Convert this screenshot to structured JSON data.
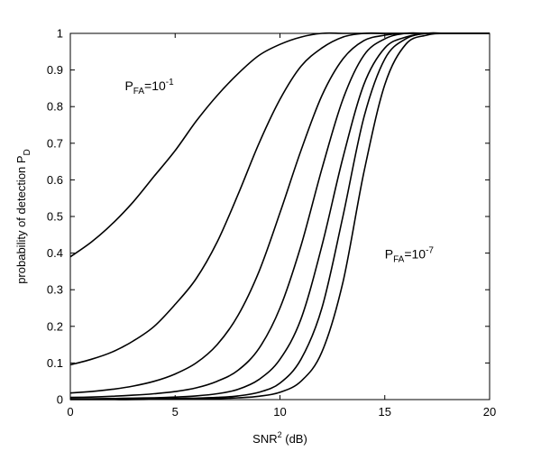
{
  "chart_data": {
    "type": "line",
    "xlabel": {
      "base": "SNR",
      "sup": "2",
      "tail": " (dB)"
    },
    "ylabel": {
      "base": "probability of detection P",
      "sub": "D"
    },
    "xlim": [
      0,
      20
    ],
    "ylim": [
      0,
      1
    ],
    "xticks": [
      "0",
      "5",
      "10",
      "15",
      "20"
    ],
    "yticks": [
      "0",
      "0.1",
      "0.2",
      "0.3",
      "0.4",
      "0.5",
      "0.6",
      "0.7",
      "0.8",
      "0.9",
      "1"
    ],
    "grid": false,
    "annotations": [
      {
        "id": "pfa_high",
        "base": "P",
        "sub": "FA",
        "mid": "=10",
        "sup": "-1",
        "at": [
          2.6,
          0.845
        ]
      },
      {
        "id": "pfa_low",
        "base": "P",
        "sub": "FA",
        "mid": "=10",
        "sup": "-7",
        "at": [
          15.0,
          0.385
        ]
      }
    ],
    "series": [
      {
        "pfa_exp": -1,
        "x": [
          0,
          1,
          2,
          3,
          4,
          5,
          6,
          7,
          8,
          9,
          10,
          11,
          12,
          13,
          14,
          15,
          16,
          17,
          18,
          20
        ],
        "y": [
          0.39,
          0.43,
          0.48,
          0.54,
          0.61,
          0.68,
          0.76,
          0.83,
          0.89,
          0.94,
          0.97,
          0.99,
          1,
          1,
          1,
          1,
          1,
          1,
          1,
          1
        ]
      },
      {
        "pfa_exp": -2,
        "x": [
          0,
          1,
          2,
          3,
          4,
          5,
          6,
          7,
          8,
          9,
          10,
          11,
          12,
          13,
          14,
          15,
          16,
          17,
          18,
          20
        ],
        "y": [
          0.095,
          0.11,
          0.13,
          0.16,
          0.2,
          0.26,
          0.33,
          0.43,
          0.56,
          0.7,
          0.82,
          0.91,
          0.96,
          0.99,
          1,
          1,
          1,
          1,
          1,
          1
        ]
      },
      {
        "pfa_exp": -3,
        "x": [
          0,
          1,
          2,
          3,
          4,
          5,
          6,
          7,
          8,
          9,
          10,
          11,
          12,
          13,
          14,
          15,
          16,
          17,
          18,
          20
        ],
        "y": [
          0.018,
          0.022,
          0.028,
          0.037,
          0.05,
          0.07,
          0.1,
          0.15,
          0.23,
          0.35,
          0.51,
          0.68,
          0.83,
          0.93,
          0.98,
          0.995,
          1,
          1,
          1,
          1
        ]
      },
      {
        "pfa_exp": -4,
        "x": [
          0,
          1,
          2,
          3,
          4,
          5,
          6,
          7,
          8,
          9,
          10,
          11,
          12,
          13,
          14,
          15,
          16,
          17,
          18,
          20
        ],
        "y": [
          0.006,
          0.007,
          0.009,
          0.012,
          0.016,
          0.022,
          0.032,
          0.05,
          0.08,
          0.14,
          0.25,
          0.42,
          0.63,
          0.82,
          0.94,
          0.985,
          1,
          1,
          1,
          1
        ]
      },
      {
        "pfa_exp": -5,
        "x": [
          0,
          1,
          2,
          3,
          4,
          5,
          6,
          7,
          8,
          9,
          10,
          11,
          12,
          13,
          14,
          15,
          16,
          17,
          18,
          20
        ],
        "y": [
          0.002,
          0.0025,
          0.003,
          0.004,
          0.005,
          0.007,
          0.01,
          0.016,
          0.028,
          0.055,
          0.11,
          0.22,
          0.42,
          0.66,
          0.86,
          0.96,
          0.99,
          1,
          1,
          1
        ]
      },
      {
        "pfa_exp": -6,
        "x": [
          0,
          1,
          2,
          3,
          4,
          5,
          6,
          7,
          8,
          9,
          10,
          11,
          12,
          13,
          14,
          15,
          16,
          17,
          18,
          20
        ],
        "y": [
          0.001,
          0.001,
          0.001,
          0.0015,
          0.002,
          0.003,
          0.004,
          0.006,
          0.01,
          0.02,
          0.045,
          0.11,
          0.25,
          0.5,
          0.77,
          0.93,
          0.985,
          1,
          1,
          1
        ]
      },
      {
        "pfa_exp": -7,
        "x": [
          0,
          1,
          2,
          3,
          4,
          5,
          6,
          7,
          8,
          9,
          10,
          11,
          12,
          13,
          14,
          15,
          16,
          17,
          18,
          20
        ],
        "y": [
          0,
          0,
          0,
          0,
          0.001,
          0.001,
          0.002,
          0.003,
          0.005,
          0.009,
          0.02,
          0.05,
          0.13,
          0.32,
          0.62,
          0.86,
          0.97,
          0.995,
          1,
          1
        ]
      }
    ]
  }
}
